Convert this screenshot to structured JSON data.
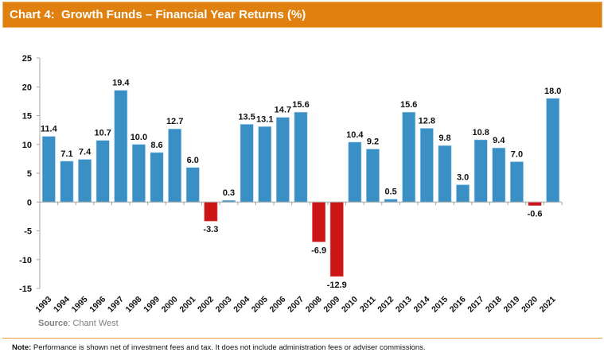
{
  "header": {
    "title": "Chart 4:  Growth Funds – Financial Year Returns (%)"
  },
  "colors": {
    "header_bg": "#e0800e",
    "positive_bar": "#3a8fc4",
    "negative_bar": "#cc1517",
    "axis": "#a6a6a6",
    "divider": "#f0a040"
  },
  "chart_data": {
    "type": "bar",
    "title": "Growth Funds – Financial Year Returns (%)",
    "xlabel": "",
    "ylabel": "",
    "ylim": [
      -15,
      25
    ],
    "yticks": [
      25,
      20,
      15,
      10,
      5,
      0,
      -5,
      -10,
      -15
    ],
    "grid": false,
    "legend": "none",
    "categories": [
      "1993",
      "1994",
      "1995",
      "1996",
      "1997",
      "1998",
      "1999",
      "2000",
      "2001",
      "2002",
      "2003",
      "2004",
      "2005",
      "2006",
      "2007",
      "2008",
      "2009",
      "2010",
      "2011",
      "2012",
      "2013",
      "2014",
      "2015",
      "2016",
      "2017",
      "2018",
      "2019",
      "2020",
      "2021"
    ],
    "values": [
      11.4,
      7.1,
      7.4,
      10.7,
      19.4,
      10.0,
      8.6,
      12.7,
      6.0,
      -3.3,
      0.3,
      13.5,
      13.1,
      14.7,
      15.6,
      -6.9,
      -12.9,
      10.4,
      9.2,
      0.5,
      15.6,
      12.8,
      9.8,
      3.0,
      10.8,
      9.4,
      7.0,
      -0.6,
      18.0
    ],
    "data_labels": [
      "11.4",
      "7.1",
      "7.4",
      "10.7",
      "19.4",
      "10.0",
      "8.6",
      "12.7",
      "6.0",
      "-3.3",
      "0.3",
      "13.5",
      "13.1",
      "14.7",
      "15.6",
      "-6.9",
      "-12.9",
      "10.4",
      "9.2",
      "0.5",
      "15.6",
      "12.8",
      "9.8",
      "3.0",
      "10.8",
      "9.4",
      "7.0",
      "-0.6",
      "18.0"
    ]
  },
  "footer": {
    "source_label": "Source",
    "source_text": ": Chant West",
    "note_label": "Note:",
    "note_text": "  Performance is shown net of investment fees and tax. It does not include administration fees or adviser commissions."
  }
}
